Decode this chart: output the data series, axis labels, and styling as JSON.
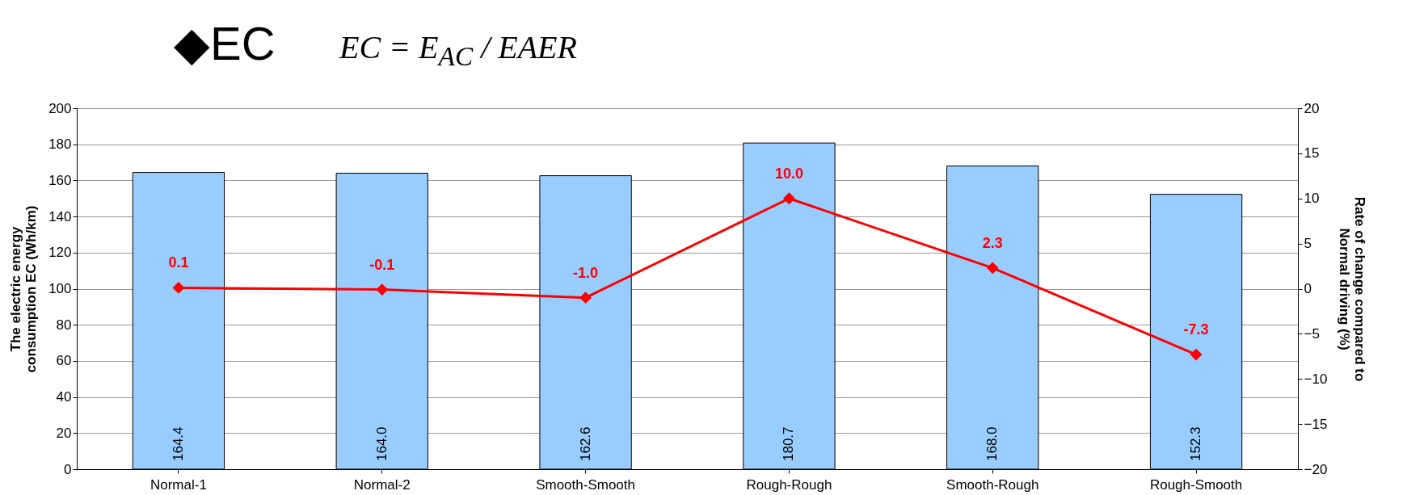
{
  "chart_data": {
    "type": "bar",
    "title": "◆EC",
    "annotations": [
      "EC = E$_{AC}$ / EAER"
    ],
    "categories": [
      "Normal-1",
      "Normal-2",
      "Smooth-Smooth",
      "Rough-Rough",
      "Smooth-Rough",
      "Rough-Smooth"
    ],
    "series": [
      {
        "color": "#99ccff",
        "values": [
          164.4,
          164.0,
          162.6,
          180.7,
          168.0,
          152.3
        ],
        "value_labels": [
          "164.4",
          "164.0",
          "162.6",
          "180.7",
          "168.0",
          "152.3"
        ]
      },
      {
        "type": "line",
        "axis": "y2",
        "color": "#ff0000",
        "values": [
          0.1,
          -0.1,
          -1.0,
          10.0,
          2.3,
          -7.3
        ],
        "value_labels": [
          "0.1",
          "-0.1",
          "-1.0",
          "10.0",
          "2.3",
          "-7.3"
        ]
      }
    ],
    "ylabel": "The electric energy\nconsumption EC (Wh/km)",
    "y2label": "Rate of change compared to\nNormal driving (%)",
    "ylim": [
      0,
      200
    ],
    "yticks": [
      0,
      20,
      40,
      60,
      80,
      100,
      120,
      140,
      160,
      180,
      200
    ],
    "y2lim": [
      -20,
      20
    ],
    "y2ticks": [
      -20,
      -15,
      -10,
      -5,
      0,
      5,
      10,
      15,
      20
    ],
    "grid": "y",
    "marker": "diamond",
    "line_style": "solid"
  }
}
